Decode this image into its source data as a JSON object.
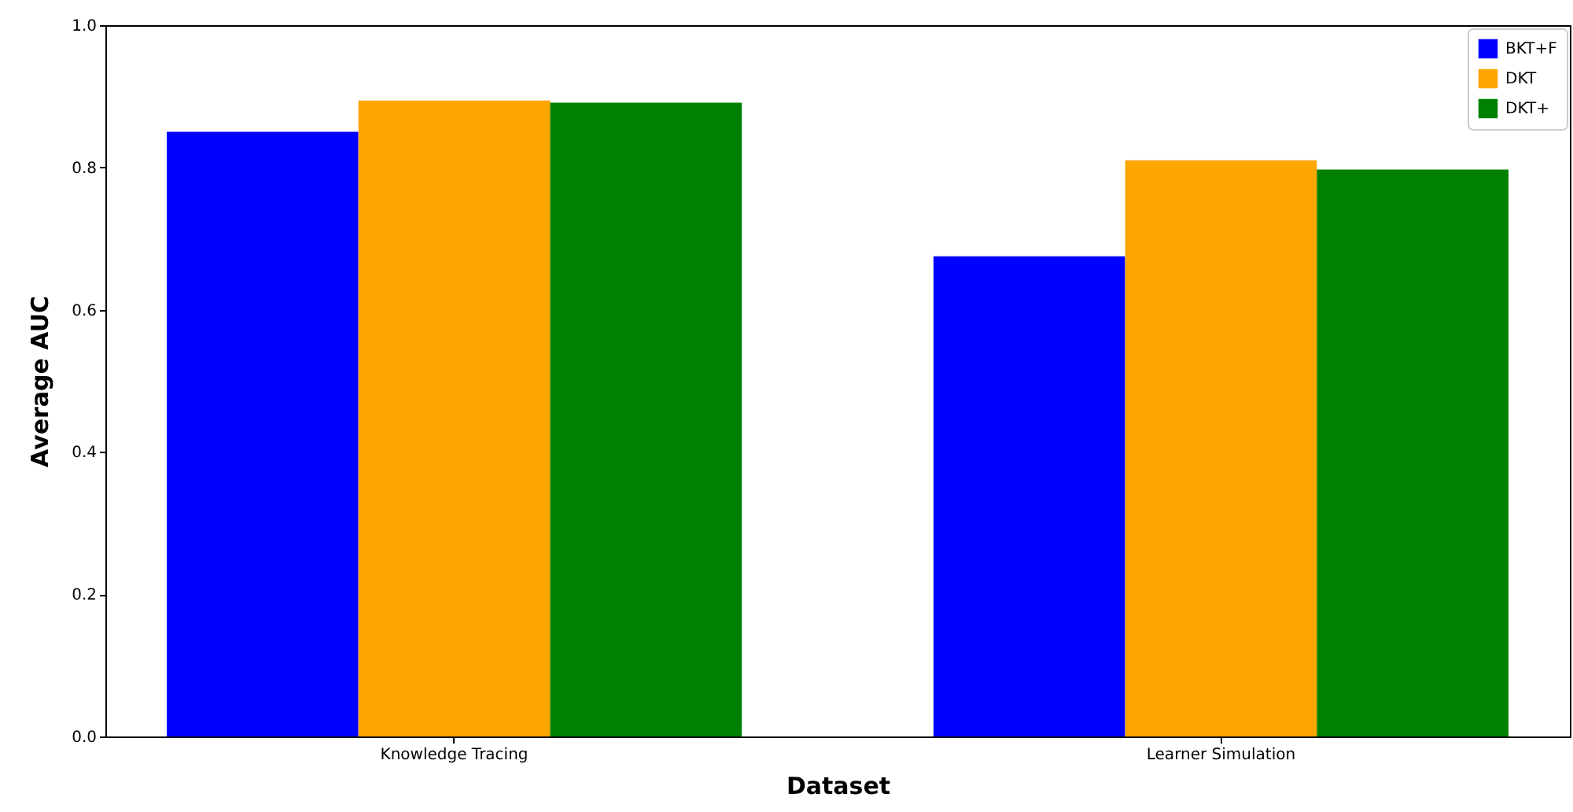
{
  "chart_data": {
    "type": "bar",
    "xlabel": "Dataset",
    "ylabel": "Average AUC",
    "categories": [
      "Knowledge Tracing",
      "Learner Simulation"
    ],
    "series": [
      {
        "name": "BKT+F",
        "color": "#0000ff",
        "values": [
          0.85,
          0.675
        ]
      },
      {
        "name": "DKT",
        "color": "#ffa500",
        "values": [
          0.894,
          0.81
        ]
      },
      {
        "name": "DKT+",
        "color": "#008000",
        "values": [
          0.891,
          0.797
        ]
      }
    ],
    "ylim": [
      0,
      1
    ],
    "yticks": [
      {
        "value": 0,
        "label": "0.0"
      },
      0.2,
      0.4,
      0.6,
      0.8,
      {
        "value": 1,
        "label": "1.0"
      }
    ],
    "grid": false,
    "legend": "top right"
  }
}
